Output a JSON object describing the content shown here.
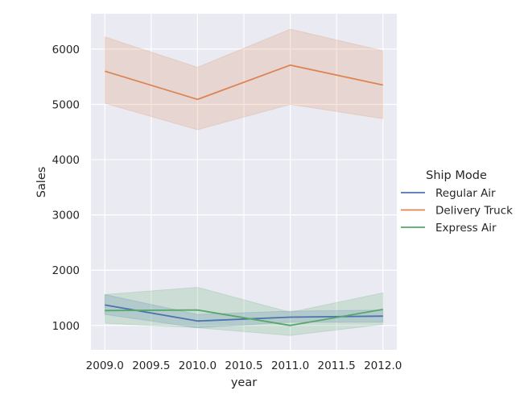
{
  "chart_data": {
    "type": "line",
    "xlabel": "year",
    "ylabel": "Sales",
    "x": [
      2009.0,
      2010.0,
      2011.0,
      2012.0
    ],
    "xticks": [
      "2009.0",
      "2009.5",
      "2010.0",
      "2010.5",
      "2011.0",
      "2011.5",
      "2012.0"
    ],
    "xtick_values": [
      2009.0,
      2009.5,
      2010.0,
      2010.5,
      2011.0,
      2011.5,
      2012.0
    ],
    "yticks": [
      "1000",
      "2000",
      "3000",
      "4000",
      "5000",
      "6000"
    ],
    "ytick_values": [
      1000,
      2000,
      3000,
      4000,
      5000,
      6000
    ],
    "xlim": [
      2008.85,
      2012.15
    ],
    "ylim": [
      560,
      6640
    ],
    "grid": true,
    "legend": {
      "title": "Ship Mode",
      "placement": "right"
    },
    "series": [
      {
        "name": "Regular Air",
        "color": "#4c72b0",
        "values": [
          1370,
          1080,
          1150,
          1170
        ],
        "ci_low": [
          1200,
          960,
          1060,
          1060
        ],
        "ci_high": [
          1560,
          1200,
          1260,
          1280
        ]
      },
      {
        "name": "Delivery Truck",
        "color": "#dd8452",
        "values": [
          5600,
          5090,
          5710,
          5350
        ],
        "ci_low": [
          5020,
          4540,
          5000,
          4740
        ],
        "ci_high": [
          6220,
          5670,
          6360,
          5970
        ]
      },
      {
        "name": "Express Air",
        "color": "#55a868",
        "values": [
          1270,
          1280,
          1000,
          1290
        ],
        "ci_low": [
          1040,
          960,
          820,
          1020
        ],
        "ci_high": [
          1560,
          1690,
          1240,
          1590
        ]
      }
    ]
  }
}
